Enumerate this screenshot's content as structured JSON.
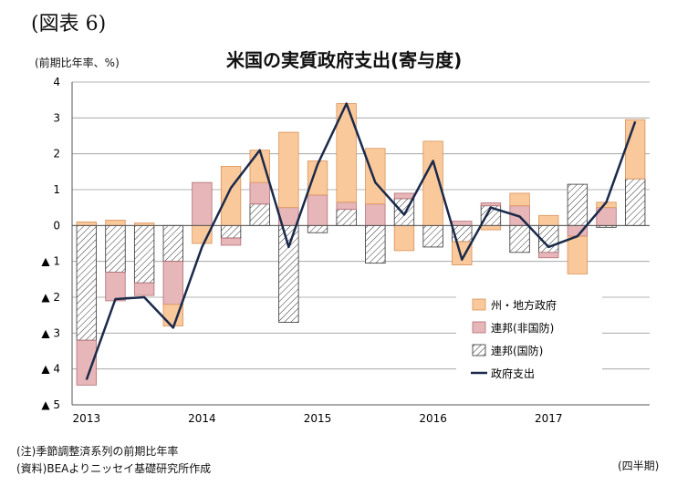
{
  "figure_label": "(図表 6)",
  "notes": [
    "(注)季節調整済系列の前期比年率",
    "(資料)BEAよりニッセイ基礎研究所作成"
  ],
  "x_unit_label": "(四半期)",
  "colors": {
    "state_local": "#fac99b",
    "state_local_stroke": "#d9925a",
    "fed_nondefense": "#e7b6b8",
    "fed_nondefense_stroke": "#b06e74",
    "fed_defense_hatch": "#333333",
    "line": "#1b2a4a",
    "grid": "#9a9a9a"
  },
  "chart_data": {
    "type": "bar",
    "stacked": true,
    "title": "米国の実質政府支出(寄与度)",
    "ylabel": "(前期比年率、%)",
    "ylim": [
      -5,
      4
    ],
    "yticks": [
      4,
      3,
      2,
      1,
      0,
      -1,
      -2,
      -3,
      -4,
      -5
    ],
    "ytick_labels": [
      "4",
      "3",
      "2",
      "1",
      "0",
      "▲ 1",
      "▲ 2",
      "▲ 3",
      "▲ 4",
      "▲ 5"
    ],
    "x_year_labels": [
      {
        "label": "2013",
        "index": 0
      },
      {
        "label": "2014",
        "index": 4
      },
      {
        "label": "2015",
        "index": 8
      },
      {
        "label": "2016",
        "index": 12
      },
      {
        "label": "2017",
        "index": 16
      }
    ],
    "quarters": 20,
    "series": [
      {
        "name": "連邦(国防)",
        "type": "bar",
        "style": "hatch",
        "values": [
          -3.2,
          -1.3,
          -1.6,
          -1.0,
          0.0,
          -0.35,
          0.6,
          -2.7,
          -0.2,
          0.45,
          -1.05,
          0.75,
          -0.6,
          -0.45,
          0.55,
          -0.75,
          -0.75,
          1.15,
          -0.05,
          1.3
        ]
      },
      {
        "name": "連邦(非国防)",
        "type": "bar",
        "style": "pink",
        "values": [
          -1.25,
          -0.8,
          -0.35,
          -1.2,
          1.2,
          -0.2,
          0.6,
          0.5,
          0.85,
          0.2,
          0.6,
          0.15,
          0.0,
          0.12,
          0.08,
          0.55,
          -0.15,
          -0.3,
          0.5,
          0.0
        ]
      },
      {
        "name": "州・地方政府",
        "type": "bar",
        "style": "peach",
        "values": [
          0.1,
          0.15,
          0.07,
          -0.6,
          -0.5,
          1.65,
          0.9,
          2.1,
          0.95,
          2.75,
          1.55,
          -0.7,
          2.35,
          -0.65,
          -0.12,
          0.35,
          0.28,
          -1.05,
          0.15,
          1.65
        ]
      },
      {
        "name": "政府支出",
        "type": "line",
        "values": [
          -4.3,
          -2.05,
          -2.0,
          -2.85,
          -0.6,
          1.05,
          2.1,
          -0.6,
          1.7,
          3.4,
          1.2,
          0.3,
          1.8,
          -0.95,
          0.5,
          0.25,
          -0.6,
          -0.3,
          0.65,
          2.9
        ]
      }
    ],
    "legend_position": "bottom-right",
    "grid": true
  }
}
